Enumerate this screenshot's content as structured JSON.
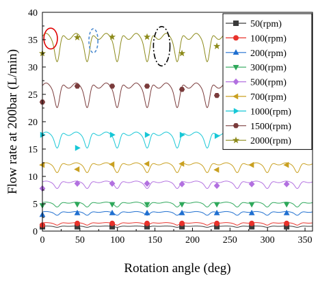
{
  "chart_data": {
    "type": "line",
    "title": "",
    "xlabel": "Rotation angle (deg)",
    "ylabel": "Flow rate at 200bar (L/min)",
    "xlim": [
      0,
      360
    ],
    "ylim": [
      0,
      40
    ],
    "xticks": [
      0,
      50,
      100,
      150,
      200,
      250,
      300,
      350
    ],
    "yticks": [
      0,
      5,
      10,
      15,
      20,
      25,
      30,
      35,
      40
    ],
    "tick_labels_x": [
      "0",
      "50",
      "100",
      "150",
      "200",
      "250",
      "300",
      "350"
    ],
    "tick_labels_y": [
      "0",
      "5",
      "10",
      "15",
      "20",
      "25",
      "30",
      "35",
      "40"
    ],
    "grid": false,
    "legend_position": "top-right",
    "pulse_period_deg": 40,
    "marker_x": [
      0,
      46.5,
      93,
      139.5,
      186,
      232.5,
      279,
      325.5
    ],
    "series": [
      {
        "name": "50(rpm)",
        "color": "#3a3a3a",
        "marker": "square",
        "base": 0.9,
        "dip": 0.2,
        "values": [
          0.8,
          0.8,
          0.8,
          0.8,
          0.8,
          0.8,
          0.8,
          0.8
        ]
      },
      {
        "name": "100(rpm)",
        "color": "#e8322b",
        "marker": "circle",
        "base": 1.5,
        "dip": 0.4,
        "values": [
          1.1,
          1.4,
          1.4,
          1.4,
          1.4,
          1.4,
          1.4,
          1.4
        ]
      },
      {
        "name": "200(rpm)",
        "color": "#1f6fd0",
        "marker": "triangle-up",
        "base": 3.5,
        "dip": 0.6,
        "values": [
          3.0,
          3.3,
          3.3,
          3.3,
          3.3,
          3.3,
          3.3,
          3.3
        ]
      },
      {
        "name": "300(rpm)",
        "color": "#2ea85a",
        "marker": "triangle-down",
        "base": 5.2,
        "dip": 0.8,
        "values": [
          4.7,
          4.9,
          4.9,
          4.9,
          4.9,
          4.9,
          4.9,
          4.9
        ]
      },
      {
        "name": "500(rpm)",
        "color": "#b270e0",
        "marker": "diamond",
        "base": 9.0,
        "dip": 1.2,
        "values": [
          7.8,
          8.7,
          8.7,
          8.7,
          8.6,
          8.3,
          8.6,
          8.6
        ]
      },
      {
        "name": "700(rpm)",
        "color": "#c9a020",
        "marker": "triangle-left",
        "base": 12.3,
        "dip": 1.6,
        "values": [
          12.1,
          11.3,
          12.2,
          12.3,
          12.3,
          11.2,
          12.1,
          12.1
        ]
      },
      {
        "name": "1000(rpm)",
        "color": "#17c7d6",
        "marker": "triangle-right",
        "base": 17.8,
        "dip": 2.6,
        "values": [
          17.6,
          15.2,
          17.6,
          17.6,
          17.6,
          17.4,
          17.4,
          17.4
        ]
      },
      {
        "name": "1500(rpm)",
        "color": "#7a3b3b",
        "marker": "hexagon",
        "base": 26.6,
        "dip": 4.0,
        "values": [
          23.6,
          26.5,
          26.5,
          26.5,
          25.9,
          24.8,
          26.5,
          26.5
        ]
      },
      {
        "name": "2000(rpm)",
        "color": "#8c8a1a",
        "marker": "star",
        "base": 35.6,
        "dip": 4.6,
        "values": [
          32.5,
          35.4,
          35.5,
          35.5,
          32.5,
          33.8,
          35.5,
          35.5
        ]
      }
    ],
    "annotations": [
      {
        "shape": "ellipse",
        "style": "solid",
        "color": "#e00000",
        "cx": 11,
        "cy": 35.2,
        "rx": 9,
        "ry": 1.9
      },
      {
        "shape": "ellipse",
        "style": "dashed",
        "color": "#4a8ad0",
        "cx": 68,
        "cy": 34.8,
        "rx": 6,
        "ry": 2.2
      },
      {
        "shape": "ellipse",
        "style": "dashdot",
        "color": "#000000",
        "cx": 159,
        "cy": 33.8,
        "rx": 11,
        "ry": 3.6
      }
    ]
  }
}
